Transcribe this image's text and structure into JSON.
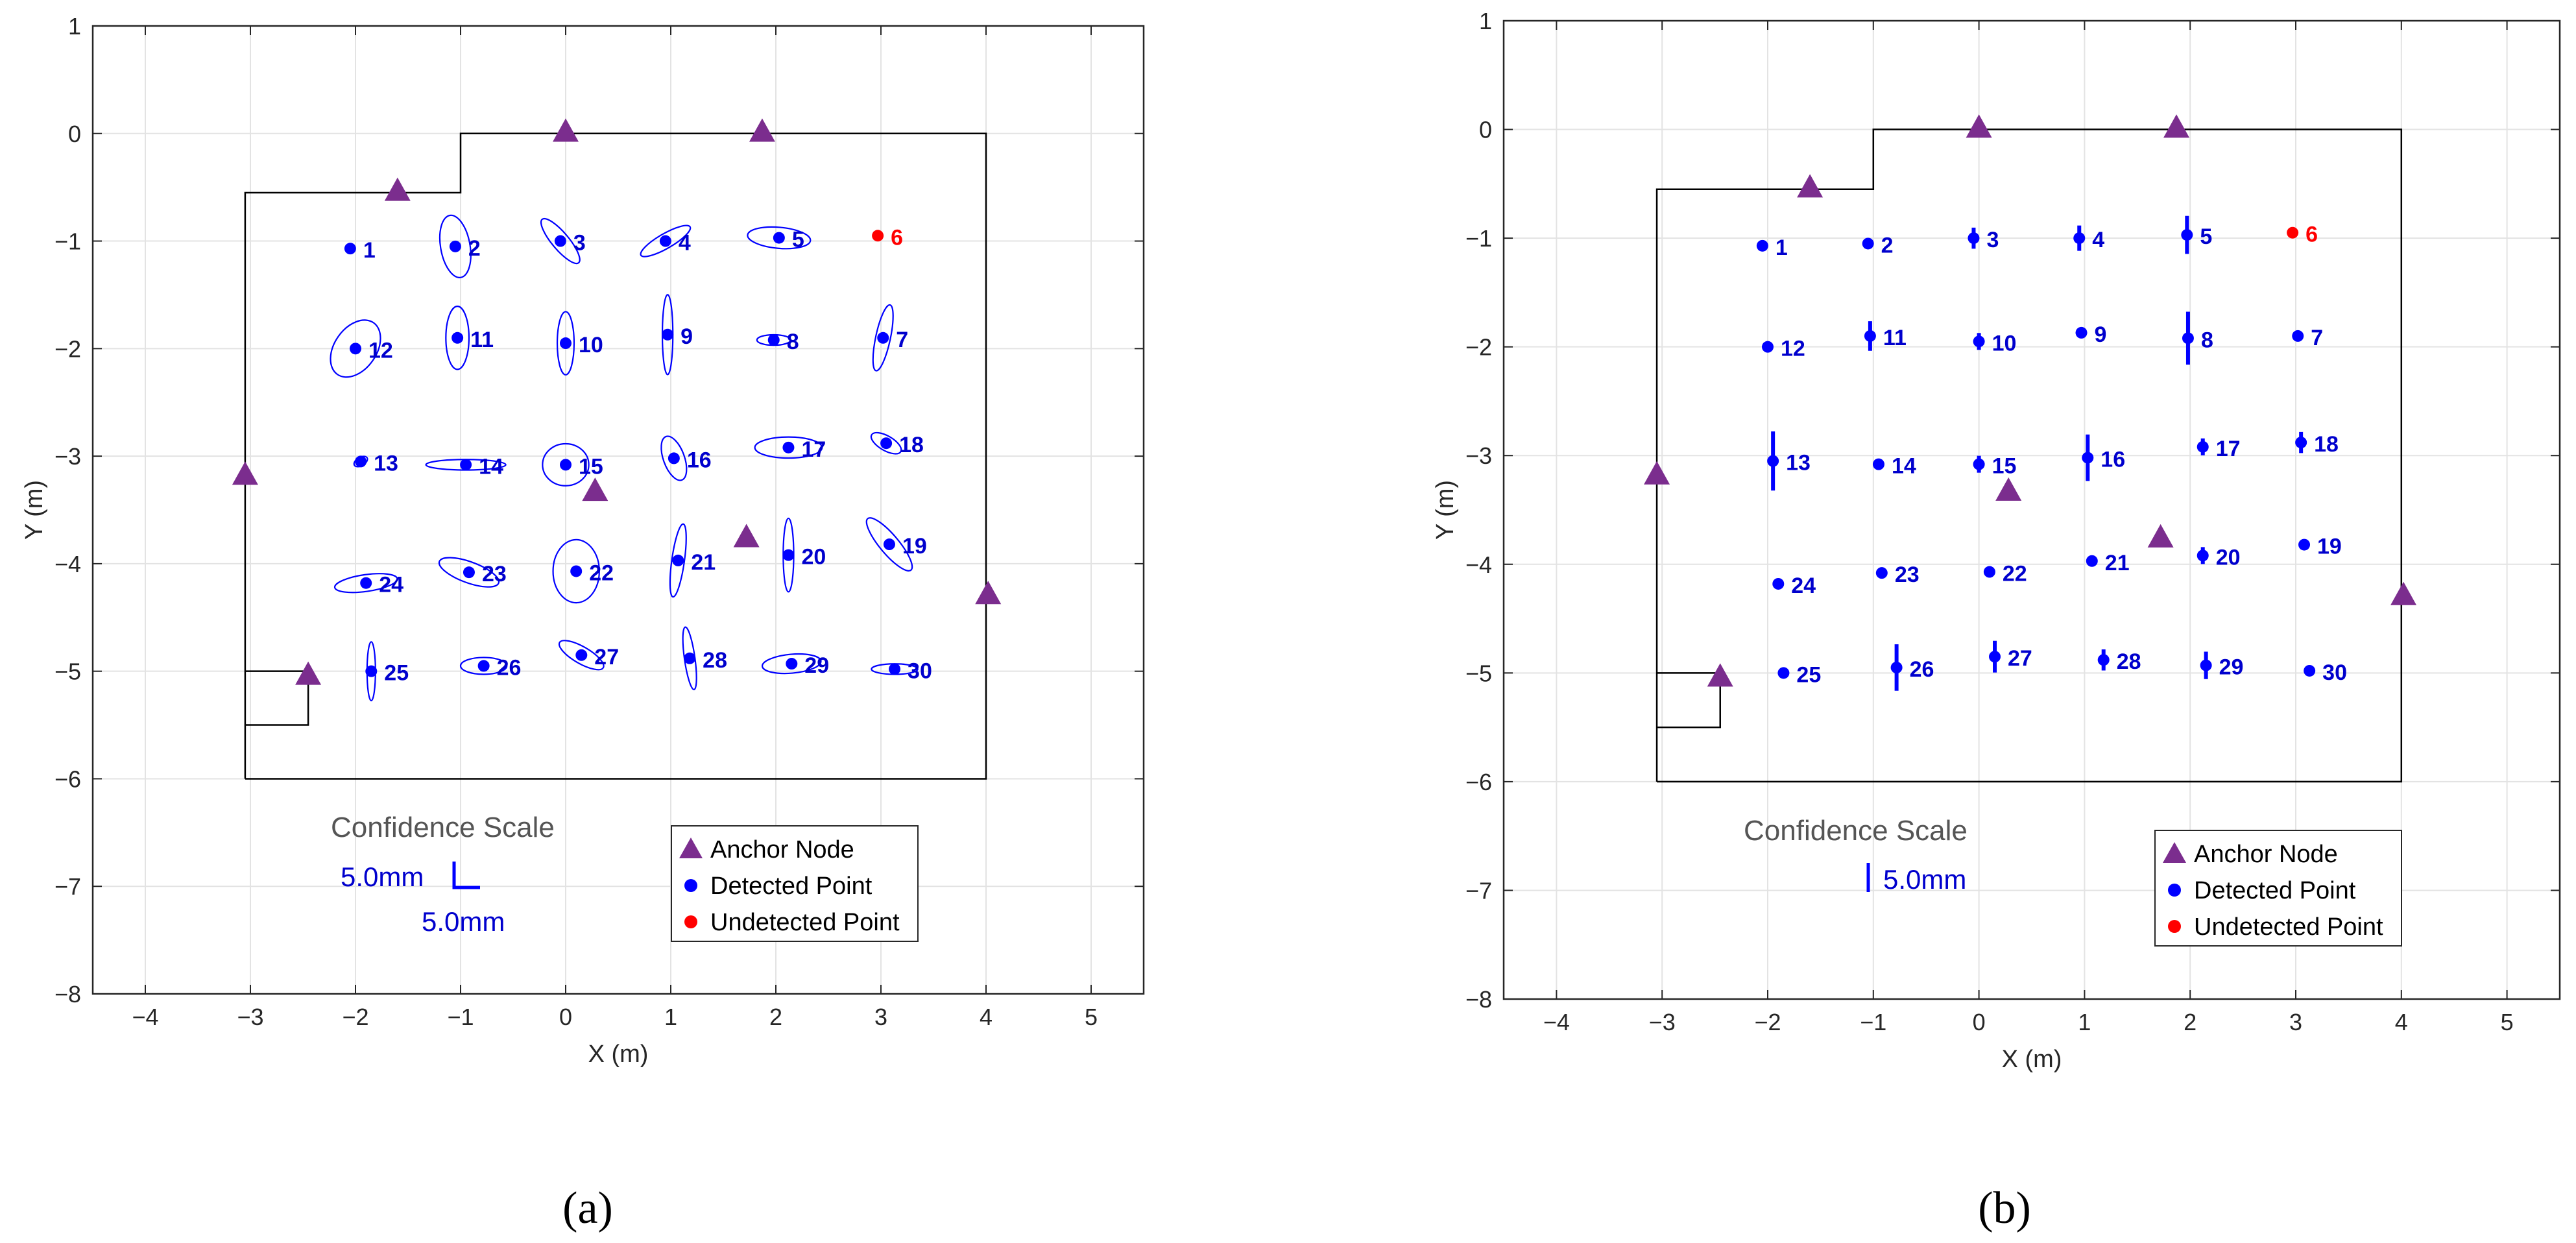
{
  "chart_data": [
    {
      "type": "scatter",
      "panel_label": "(a)",
      "xlabel": "X (m)",
      "ylabel": "Y (m)",
      "xlim": [
        -4.5,
        5.5
      ],
      "ylim": [
        -8,
        1
      ],
      "xticks": [
        "−4",
        "−3",
        "−2",
        "−1",
        "0",
        "1",
        "2",
        "3",
        "4",
        "5"
      ],
      "yticks": [
        "1",
        "0",
        "−1",
        "−2",
        "−3",
        "−4",
        "−5",
        "−6",
        "−7",
        "−8"
      ],
      "grid": true,
      "uncertainty_style": "ellipse",
      "room_outline": [
        [
          -3.05,
          -6
        ],
        [
          -3.05,
          -0.55
        ],
        [
          -1.0,
          -0.55
        ],
        [
          -1.0,
          0
        ],
        [
          4.0,
          0
        ],
        [
          4.0,
          -6
        ],
        [
          -3.05,
          -6
        ]
      ],
      "room_notch": [
        [
          -3.05,
          -5
        ],
        [
          -2.45,
          -5
        ],
        [
          -2.45,
          -5.5
        ],
        [
          -3.05,
          -5.5
        ]
      ],
      "confidence_scale": {
        "title": "Confidence Scale",
        "horizontal_label": "5.0mm",
        "vertical_label": "5.0mm"
      },
      "legend": [
        {
          "label": "Anchor Node",
          "marker": "triangle",
          "color": "#7b2d8e"
        },
        {
          "label": "Detected Point",
          "marker": "circle",
          "color": "#0000ff"
        },
        {
          "label": "Undetected Point",
          "marker": "circle",
          "color": "#ff0000"
        }
      ],
      "anchors": [
        {
          "x": -1.6,
          "y": -0.53
        },
        {
          "x": 0.0,
          "y": 0.02
        },
        {
          "x": 1.87,
          "y": 0.02
        },
        {
          "x": -3.05,
          "y": -3.17
        },
        {
          "x": 0.28,
          "y": -3.32
        },
        {
          "x": 1.72,
          "y": -3.75
        },
        {
          "x": 4.02,
          "y": -4.28
        },
        {
          "x": -2.45,
          "y": -5.03
        }
      ],
      "points": [
        {
          "id": "1",
          "x": -2.05,
          "y": -1.07,
          "detected": true,
          "rx": 0.0,
          "ry": 0.0,
          "angle": 0
        },
        {
          "id": "2",
          "x": -1.05,
          "y": -1.05,
          "detected": true,
          "rx": 0.14,
          "ry": 0.3,
          "angle": 10
        },
        {
          "id": "3",
          "x": -0.05,
          "y": -1.0,
          "detected": true,
          "rx": 0.08,
          "ry": 0.27,
          "angle": 40
        },
        {
          "id": "4",
          "x": 0.95,
          "y": -1.0,
          "detected": true,
          "rx": 0.07,
          "ry": 0.27,
          "angle": -60
        },
        {
          "id": "5",
          "x": 2.03,
          "y": -0.97,
          "detected": true,
          "rx": 0.3,
          "ry": 0.1,
          "angle": -5
        },
        {
          "id": "6",
          "x": 2.97,
          "y": -0.95,
          "detected": false
        },
        {
          "id": "7",
          "x": 3.02,
          "y": -1.9,
          "detected": true,
          "rx": 0.07,
          "ry": 0.32,
          "angle": -12
        },
        {
          "id": "8",
          "x": 1.98,
          "y": -1.92,
          "detected": true,
          "rx": 0.16,
          "ry": 0.05,
          "angle": 0
        },
        {
          "id": "9",
          "x": 0.97,
          "y": -1.87,
          "detected": true,
          "rx": 0.05,
          "ry": 0.38,
          "angle": 0
        },
        {
          "id": "10",
          "x": 0.0,
          "y": -1.95,
          "detected": true,
          "rx": 0.08,
          "ry": 0.3,
          "angle": 0
        },
        {
          "id": "11",
          "x": -1.03,
          "y": -1.9,
          "detected": true,
          "rx": 0.11,
          "ry": 0.3,
          "angle": 0
        },
        {
          "id": "12",
          "x": -2.0,
          "y": -2.0,
          "detected": true,
          "rx": 0.2,
          "ry": 0.3,
          "angle": -35
        },
        {
          "id": "13",
          "x": -1.95,
          "y": -3.05,
          "detected": true,
          "rx": 0.07,
          "ry": 0.04,
          "angle": 30
        },
        {
          "id": "14",
          "x": -0.95,
          "y": -3.08,
          "detected": true,
          "rx": 0.38,
          "ry": 0.05,
          "angle": 0
        },
        {
          "id": "15",
          "x": 0.0,
          "y": -3.08,
          "detected": true,
          "rx": 0.22,
          "ry": 0.2,
          "angle": 0
        },
        {
          "id": "16",
          "x": 1.03,
          "y": -3.02,
          "detected": true,
          "rx": 0.1,
          "ry": 0.22,
          "angle": 20
        },
        {
          "id": "17",
          "x": 2.12,
          "y": -2.92,
          "detected": true,
          "rx": 0.32,
          "ry": 0.1,
          "angle": 0
        },
        {
          "id": "18",
          "x": 3.05,
          "y": -2.88,
          "detected": true,
          "rx": 0.16,
          "ry": 0.07,
          "angle": -30
        },
        {
          "id": "19",
          "x": 3.08,
          "y": -3.82,
          "detected": true,
          "rx": 0.32,
          "ry": 0.09,
          "angle": -50
        },
        {
          "id": "20",
          "x": 2.12,
          "y": -3.92,
          "detected": true,
          "rx": 0.05,
          "ry": 0.35,
          "angle": 0
        },
        {
          "id": "21",
          "x": 1.07,
          "y": -3.97,
          "detected": true,
          "rx": 0.06,
          "ry": 0.35,
          "angle": -8
        },
        {
          "id": "22",
          "x": 0.1,
          "y": -4.07,
          "detected": true,
          "rx": 0.22,
          "ry": 0.3,
          "angle": 0
        },
        {
          "id": "23",
          "x": -0.92,
          "y": -4.08,
          "detected": true,
          "rx": 0.3,
          "ry": 0.1,
          "angle": -20
        },
        {
          "id": "24",
          "x": -1.9,
          "y": -4.18,
          "detected": true,
          "rx": 0.3,
          "ry": 0.08,
          "angle": 8
        },
        {
          "id": "25",
          "x": -1.85,
          "y": -5.0,
          "detected": true,
          "rx": 0.04,
          "ry": 0.28,
          "angle": 0
        },
        {
          "id": "26",
          "x": -0.78,
          "y": -4.95,
          "detected": true,
          "rx": 0.22,
          "ry": 0.08,
          "angle": 0
        },
        {
          "id": "27",
          "x": 0.15,
          "y": -4.85,
          "detected": true,
          "rx": 0.24,
          "ry": 0.08,
          "angle": -30
        },
        {
          "id": "28",
          "x": 1.18,
          "y": -4.88,
          "detected": true,
          "rx": 0.05,
          "ry": 0.3,
          "angle": 8
        },
        {
          "id": "29",
          "x": 2.15,
          "y": -4.93,
          "detected": true,
          "rx": 0.28,
          "ry": 0.09,
          "angle": 5
        },
        {
          "id": "30",
          "x": 3.13,
          "y": -4.98,
          "detected": true,
          "rx": 0.22,
          "ry": 0.05,
          "angle": 0
        }
      ]
    },
    {
      "type": "scatter",
      "panel_label": "(b)",
      "xlabel": "X (m)",
      "ylabel": "Y (m)",
      "xlim": [
        -4.5,
        5.5
      ],
      "ylim": [
        -8,
        1
      ],
      "xticks": [
        "−4",
        "−3",
        "−2",
        "−1",
        "0",
        "1",
        "2",
        "3",
        "4",
        "5"
      ],
      "yticks": [
        "1",
        "0",
        "−1",
        "−2",
        "−3",
        "−4",
        "−5",
        "−6",
        "−7",
        "−8"
      ],
      "grid": true,
      "uncertainty_style": "vertical-bar",
      "room_outline": [
        [
          -3.05,
          -6
        ],
        [
          -3.05,
          -0.55
        ],
        [
          -1.0,
          -0.55
        ],
        [
          -1.0,
          0
        ],
        [
          4.0,
          0
        ],
        [
          4.0,
          -6
        ],
        [
          -3.05,
          -6
        ]
      ],
      "room_notch": [
        [
          -3.05,
          -5
        ],
        [
          -2.45,
          -5
        ],
        [
          -2.45,
          -5.5
        ],
        [
          -3.05,
          -5.5
        ]
      ],
      "confidence_scale": {
        "title": "Confidence Scale",
        "vertical_label": "5.0mm"
      },
      "legend": [
        {
          "label": "Anchor Node",
          "marker": "triangle",
          "color": "#7b2d8e"
        },
        {
          "label": "Detected Point",
          "marker": "circle",
          "color": "#0000ff"
        },
        {
          "label": "Undetected Point",
          "marker": "circle",
          "color": "#ff0000"
        }
      ],
      "anchors": [
        {
          "x": -1.6,
          "y": -0.53
        },
        {
          "x": 0.0,
          "y": 0.02
        },
        {
          "x": 1.87,
          "y": 0.02
        },
        {
          "x": -3.05,
          "y": -3.17
        },
        {
          "x": 0.28,
          "y": -3.32
        },
        {
          "x": 1.72,
          "y": -3.75
        },
        {
          "x": 4.02,
          "y": -4.28
        },
        {
          "x": -2.45,
          "y": -5.03
        }
      ],
      "points": [
        {
          "id": "1",
          "x": -2.05,
          "y": -1.07,
          "detected": true,
          "err": 0.0
        },
        {
          "id": "2",
          "x": -1.05,
          "y": -1.05,
          "detected": true,
          "err": 0.0
        },
        {
          "id": "3",
          "x": -0.05,
          "y": -1.0,
          "detected": true,
          "err": 0.1
        },
        {
          "id": "4",
          "x": 0.95,
          "y": -1.0,
          "detected": true,
          "err": 0.12
        },
        {
          "id": "5",
          "x": 1.97,
          "y": -0.97,
          "detected": true,
          "err": 0.18
        },
        {
          "id": "6",
          "x": 2.97,
          "y": -0.95,
          "detected": false
        },
        {
          "id": "7",
          "x": 3.02,
          "y": -1.9,
          "detected": true,
          "err": 0.0
        },
        {
          "id": "8",
          "x": 1.98,
          "y": -1.92,
          "detected": true,
          "err": 0.25
        },
        {
          "id": "9",
          "x": 0.97,
          "y": -1.87,
          "detected": true,
          "err": 0.0
        },
        {
          "id": "10",
          "x": 0.0,
          "y": -1.95,
          "detected": true,
          "err": 0.08
        },
        {
          "id": "11",
          "x": -1.03,
          "y": -1.9,
          "detected": true,
          "err": 0.14
        },
        {
          "id": "12",
          "x": -2.0,
          "y": -2.0,
          "detected": true,
          "err": 0.0
        },
        {
          "id": "13",
          "x": -1.95,
          "y": -3.05,
          "detected": true,
          "err": 0.28
        },
        {
          "id": "14",
          "x": -0.95,
          "y": -3.08,
          "detected": true,
          "err": 0.0
        },
        {
          "id": "15",
          "x": 0.0,
          "y": -3.08,
          "detected": true,
          "err": 0.08
        },
        {
          "id": "16",
          "x": 1.03,
          "y": -3.02,
          "detected": true,
          "err": 0.22
        },
        {
          "id": "17",
          "x": 2.12,
          "y": -2.92,
          "detected": true,
          "err": 0.08
        },
        {
          "id": "18",
          "x": 3.05,
          "y": -2.88,
          "detected": true,
          "err": 0.1
        },
        {
          "id": "19",
          "x": 3.08,
          "y": -3.82,
          "detected": true,
          "err": 0.0
        },
        {
          "id": "20",
          "x": 2.12,
          "y": -3.92,
          "detected": true,
          "err": 0.08
        },
        {
          "id": "21",
          "x": 1.07,
          "y": -3.97,
          "detected": true,
          "err": 0.0
        },
        {
          "id": "22",
          "x": 0.1,
          "y": -4.07,
          "detected": true,
          "err": 0.0
        },
        {
          "id": "23",
          "x": -0.92,
          "y": -4.08,
          "detected": true,
          "err": 0.0
        },
        {
          "id": "24",
          "x": -1.9,
          "y": -4.18,
          "detected": true,
          "err": 0.0
        },
        {
          "id": "25",
          "x": -1.85,
          "y": -5.0,
          "detected": true,
          "err": 0.0
        },
        {
          "id": "26",
          "x": -0.78,
          "y": -4.95,
          "detected": true,
          "err": 0.22
        },
        {
          "id": "27",
          "x": 0.15,
          "y": -4.85,
          "detected": true,
          "err": 0.15
        },
        {
          "id": "28",
          "x": 1.18,
          "y": -4.88,
          "detected": true,
          "err": 0.1
        },
        {
          "id": "29",
          "x": 2.15,
          "y": -4.93,
          "detected": true,
          "err": 0.13
        },
        {
          "id": "30",
          "x": 3.13,
          "y": -4.98,
          "detected": true,
          "err": 0.0
        }
      ]
    }
  ]
}
